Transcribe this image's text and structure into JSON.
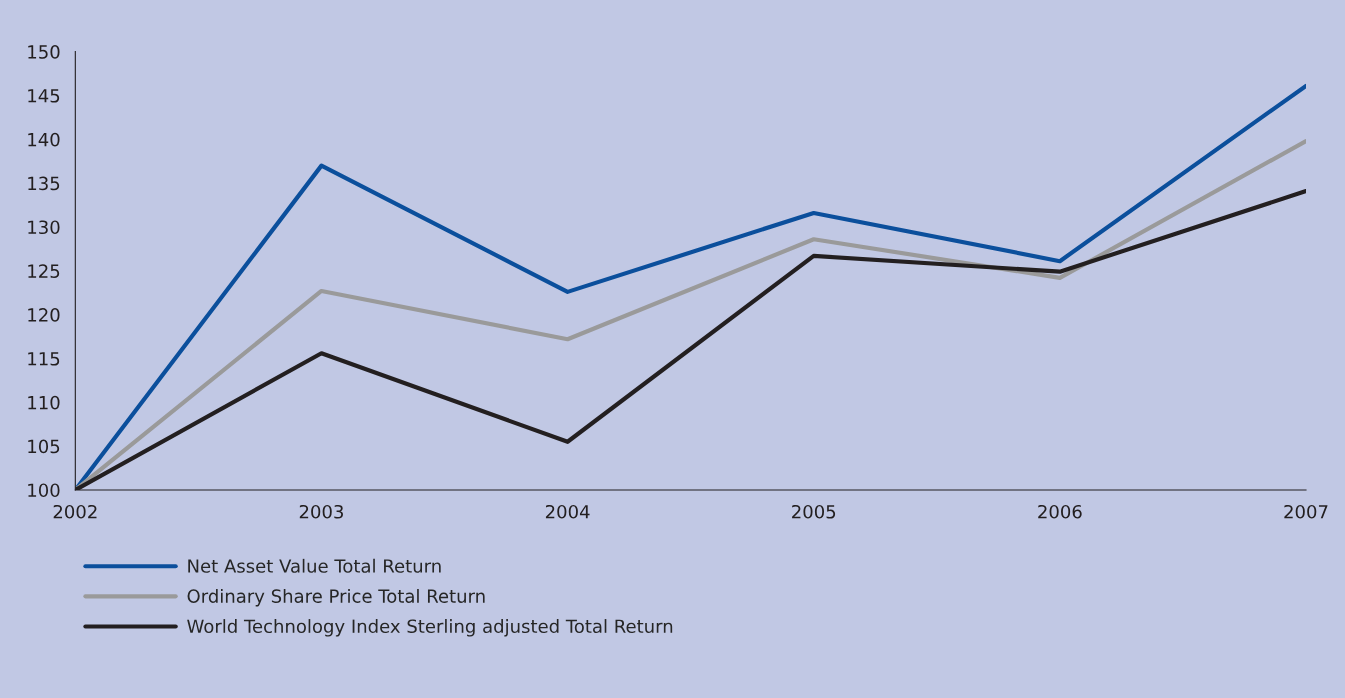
{
  "chart_data": {
    "type": "line",
    "x": [
      2002,
      2003,
      2004,
      2005,
      2006,
      2007
    ],
    "series": [
      {
        "name": "Net Asset Value Total Return",
        "color": "#0b4f9c",
        "values": [
          100,
          137,
          122.6,
          131.6,
          126.1,
          146.1
        ]
      },
      {
        "name": "Ordinary Share Price Total Return",
        "color": "#9a9a9a",
        "values": [
          100,
          122.7,
          117.2,
          128.6,
          124.2,
          139.8
        ]
      },
      {
        "name": "World Technology Index Sterling adjusted Total Return",
        "color": "#231f20",
        "values": [
          100,
          115.6,
          105.5,
          126.7,
          124.9,
          134.1
        ]
      }
    ],
    "xlim": [
      2002,
      2007
    ],
    "xticks": [
      2002,
      2003,
      2004,
      2005,
      2006,
      2007
    ],
    "ylim": [
      100,
      150
    ],
    "yticks": [
      100,
      105,
      110,
      115,
      120,
      125,
      130,
      135,
      140,
      145,
      150
    ],
    "grid": false,
    "legend": "bottom left",
    "marker": "none",
    "line_style": "solid"
  }
}
